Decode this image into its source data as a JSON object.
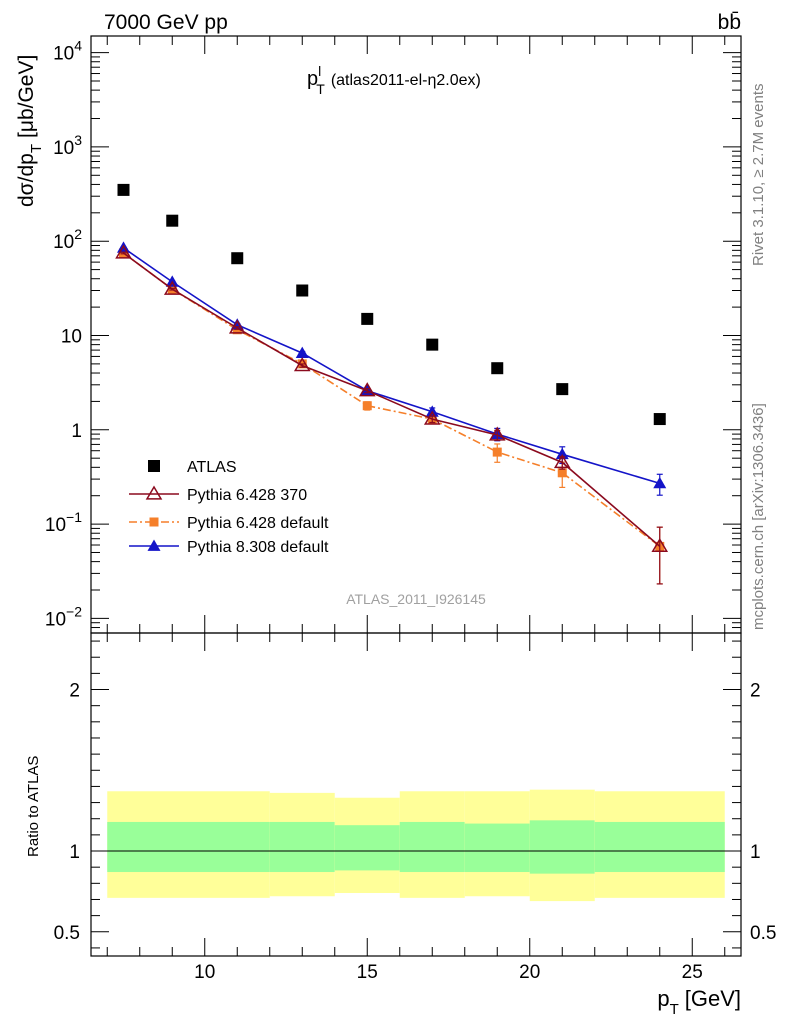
{
  "header": {
    "beam": "7000 GeV pp",
    "process": "bb̄"
  },
  "side_labels": {
    "rivet": "Rivet 3.1.10, ≥ 2.7M events",
    "mcplots": "mcplots.cern.ch [arXiv:1306.3436]"
  },
  "chart_data": [
    {
      "type": "scatter",
      "panel": "main",
      "title": "p_T^l (atlas2011-el-η2.0ex)",
      "title_main": "p",
      "title_sub": "T",
      "title_sup": "l",
      "title_rest": "(atlas2011-el-η2.0ex)",
      "ylabel": "dσ/dp_T [μb/GeV]",
      "ylabel_main": "dσ/dp",
      "ylabel_sub": "T",
      "ylabel_unit": "[μb/GeV]",
      "yscale": "log",
      "ylim": [
        0.007,
        15000
      ],
      "xlim": [
        6.5,
        26.5
      ],
      "y_ticks": [
        {
          "value": 10000,
          "base": "10",
          "exp": "4"
        },
        {
          "value": 1000,
          "base": "10",
          "exp": "3"
        },
        {
          "value": 100,
          "base": "10",
          "exp": "2"
        },
        {
          "value": 10,
          "base": "10",
          "exp": ""
        },
        {
          "value": 1,
          "base": "1",
          "exp": ""
        },
        {
          "value": 0.1,
          "base": "10",
          "exp": "−1"
        },
        {
          "value": 0.01,
          "base": "10",
          "exp": "−2"
        }
      ],
      "watermark": "ATLAS_2011_I926145",
      "legend_position": "bottom-left",
      "series": [
        {
          "name": "ATLAS",
          "color": "#000000",
          "marker": "square",
          "x": [
            7.5,
            9,
            11,
            13,
            15,
            17,
            19,
            21,
            24
          ],
          "y": [
            350,
            165,
            66,
            30,
            15,
            8,
            4.5,
            2.7,
            1.3
          ]
        },
        {
          "name": "Pythia 6.428 370",
          "color": "#8b0a1e",
          "marker": "open-triangle",
          "line": "solid",
          "x": [
            7.5,
            9,
            11,
            13,
            15,
            17,
            19,
            21,
            24
          ],
          "y": [
            75,
            31,
            12,
            4.8,
            2.6,
            1.3,
            0.88,
            0.45,
            0.058
          ],
          "err": [
            0.02,
            0.02,
            0.03,
            0.04,
            0.05,
            0.08,
            0.12,
            0.15,
            0.6
          ]
        },
        {
          "name": "Pythia 6.428 default",
          "color": "#f57f2a",
          "marker": "filled-square",
          "line": "dashdot",
          "x": [
            7.5,
            9,
            11,
            13,
            15,
            17,
            19,
            21,
            24
          ],
          "y": [
            75,
            31,
            11.5,
            5,
            1.8,
            1.3,
            0.58,
            0.35,
            0.058
          ],
          "err": [
            0.02,
            0.02,
            0.03,
            0.05,
            0.1,
            0.1,
            0.22,
            0.3,
            0.6
          ]
        },
        {
          "name": "Pythia 8.308 default",
          "color": "#1414c8",
          "marker": "filled-triangle",
          "line": "solid",
          "x": [
            7.5,
            9,
            11,
            13,
            15,
            17,
            19,
            21,
            24
          ],
          "y": [
            85,
            37,
            13,
            6.5,
            2.6,
            1.55,
            0.9,
            0.55,
            0.27
          ],
          "err": [
            0.02,
            0.02,
            0.03,
            0.04,
            0.05,
            0.1,
            0.15,
            0.2,
            0.25
          ]
        }
      ]
    },
    {
      "type": "area",
      "panel": "ratio",
      "ylabel": "Ratio to ATLAS",
      "yscale": "linear",
      "ylim": [
        0.35,
        2.35
      ],
      "xlim": [
        6.5,
        26.5
      ],
      "xlabel": "p_T [GeV]",
      "xlabel_main": "p",
      "xlabel_sub": "T",
      "xlabel_unit": "[GeV]",
      "x_ticks": [
        "10",
        "15",
        "20",
        "25"
      ],
      "y_ticks": [
        "0.5",
        "1",
        "2"
      ],
      "reference": 1,
      "bins": [
        {
          "x_low": 7,
          "x_high": 12,
          "stat_low": 0.87,
          "stat_high": 1.18,
          "tot_low": 0.71,
          "tot_high": 1.37
        },
        {
          "x_low": 12,
          "x_high": 14,
          "stat_low": 0.87,
          "stat_high": 1.18,
          "tot_low": 0.72,
          "tot_high": 1.36
        },
        {
          "x_low": 14,
          "x_high": 16,
          "stat_low": 0.88,
          "stat_high": 1.16,
          "tot_low": 0.74,
          "tot_high": 1.33
        },
        {
          "x_low": 16,
          "x_high": 18,
          "stat_low": 0.87,
          "stat_high": 1.18,
          "tot_low": 0.71,
          "tot_high": 1.37
        },
        {
          "x_low": 18,
          "x_high": 20,
          "stat_low": 0.87,
          "stat_high": 1.17,
          "tot_low": 0.72,
          "tot_high": 1.37
        },
        {
          "x_low": 20,
          "x_high": 22,
          "stat_low": 0.86,
          "stat_high": 1.19,
          "tot_low": 0.69,
          "tot_high": 1.38
        },
        {
          "x_low": 22,
          "x_high": 26,
          "stat_low": 0.87,
          "stat_high": 1.18,
          "tot_low": 0.71,
          "tot_high": 1.37
        }
      ],
      "colors": {
        "stat": "#99ff99",
        "total": "#ffff99"
      }
    }
  ]
}
